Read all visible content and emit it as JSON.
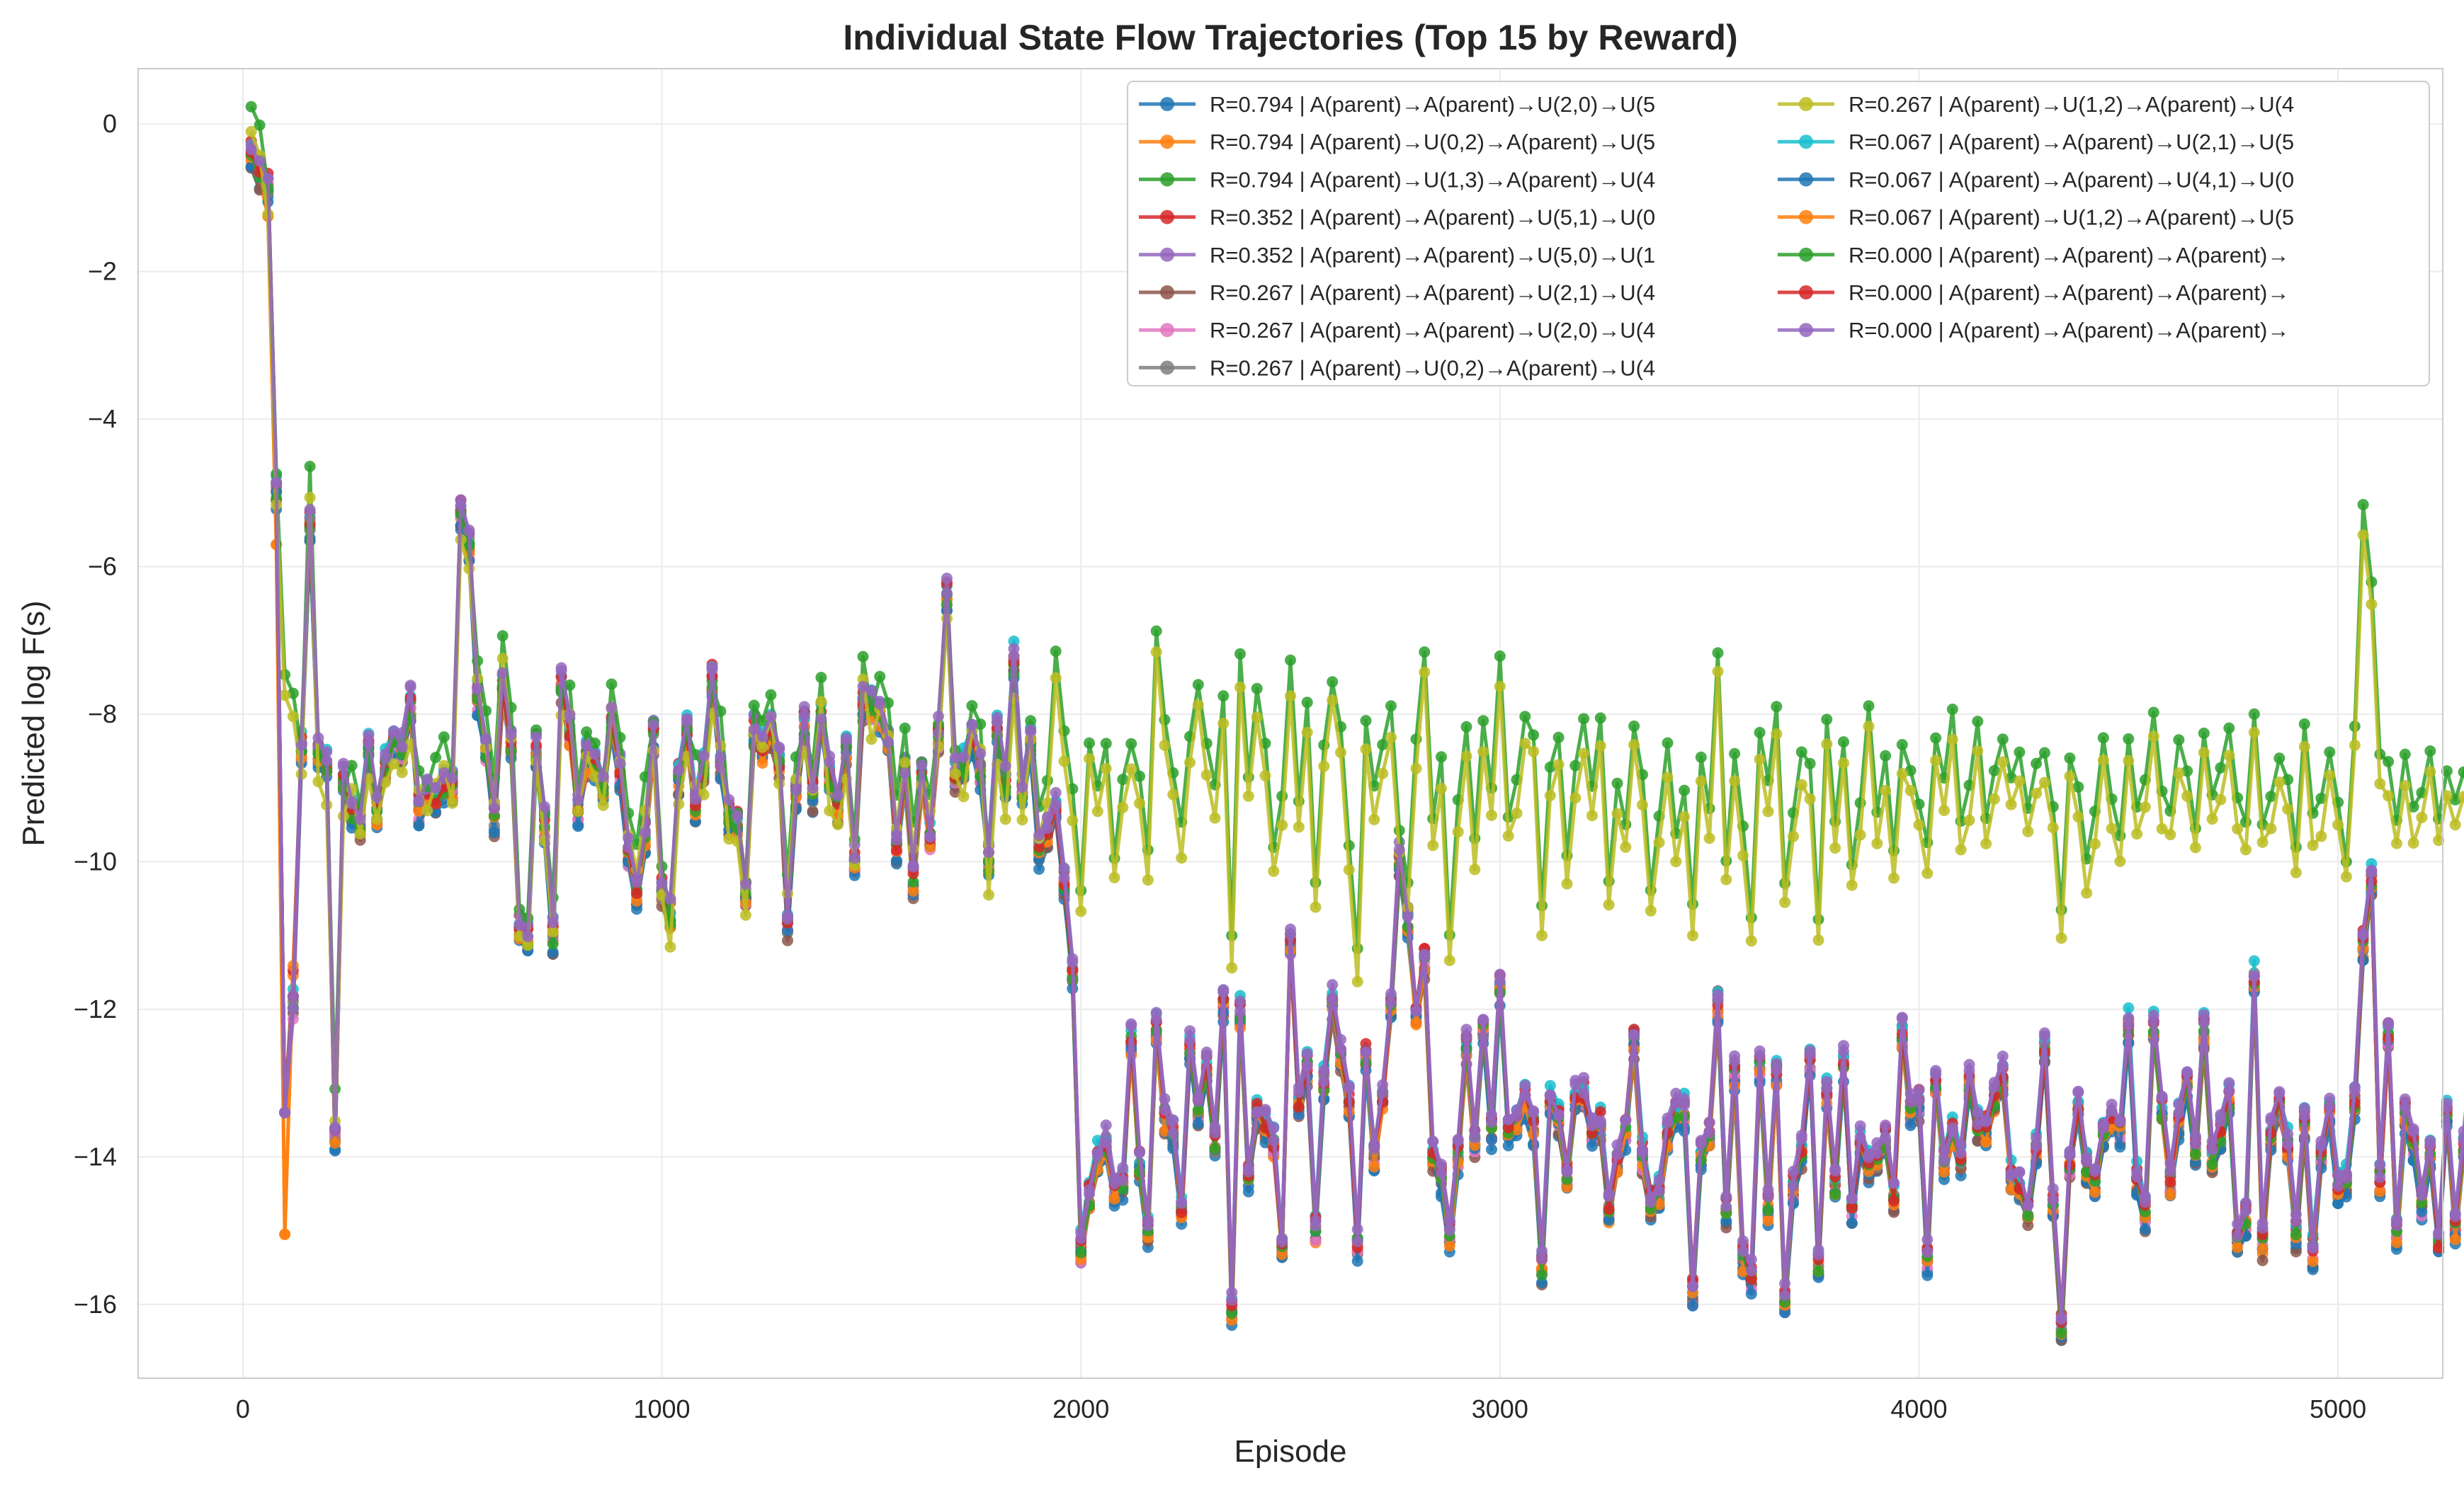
{
  "chart_data": {
    "type": "line",
    "title": "Individual State Flow Trajectories (Top 15 by Reward)",
    "xlabel": "Episode",
    "ylabel": "Predicted log F(s)",
    "xlim": [
      -250,
      5250
    ],
    "ylim": [
      -17,
      0.75
    ],
    "xticks": [
      0,
      1000,
      2000,
      3000,
      4000,
      5000
    ],
    "yticks": [
      0,
      -2,
      -4,
      -6,
      -8,
      -10,
      -12,
      -14,
      -16
    ],
    "grid": true,
    "legend_placement": "top-right",
    "legend_columns": 2,
    "series": [
      {
        "name": "R=0.794 | A(parent)→A(parent)→U(2,0)→U(5",
        "color": "#1f77b4",
        "group": "low"
      },
      {
        "name": "R=0.794 | A(parent)→U(0,2)→A(parent)→U(5",
        "color": "#ff7f0e",
        "group": "low"
      },
      {
        "name": "R=0.794 | A(parent)→U(1,3)→A(parent)→U(4",
        "color": "#2ca02c",
        "group": "high"
      },
      {
        "name": "R=0.352 | A(parent)→A(parent)→U(5,1)→U(0",
        "color": "#d62728",
        "group": "low"
      },
      {
        "name": "R=0.352 | A(parent)→A(parent)→U(5,0)→U(1",
        "color": "#9467bd",
        "group": "low"
      },
      {
        "name": "R=0.267 | A(parent)→A(parent)→U(2,1)→U(4",
        "color": "#8c564b",
        "group": "low"
      },
      {
        "name": "R=0.267 | A(parent)→A(parent)→U(2,0)→U(4",
        "color": "#e377c2",
        "group": "low"
      },
      {
        "name": "R=0.267 | A(parent)→U(0,2)→A(parent)→U(4",
        "color": "#7f7f7f",
        "group": "low"
      },
      {
        "name": "R=0.267 | A(parent)→U(1,2)→A(parent)→U(4",
        "color": "#bcbd22",
        "group": "high"
      },
      {
        "name": "R=0.067 | A(parent)→A(parent)→U(2,1)→U(5",
        "color": "#17becf",
        "group": "low"
      },
      {
        "name": "R=0.067 | A(parent)→A(parent)→U(4,1)→U(0",
        "color": "#1f77b4",
        "group": "low"
      },
      {
        "name": "R=0.067 | A(parent)→U(1,2)→A(parent)→U(5",
        "color": "#ff7f0e",
        "group": "low"
      },
      {
        "name": "R=0.000 | A(parent)→A(parent)→A(parent)→",
        "color": "#2ca02c",
        "group": "low"
      },
      {
        "name": "R=0.000 | A(parent)→A(parent)→A(parent)→",
        "color": "#d62728",
        "group": "low"
      },
      {
        "name": "R=0.000 | A(parent)→A(parent)→A(parent)→",
        "color": "#9467bd",
        "group": "low"
      }
    ],
    "trajectories": {
      "x_start": 20,
      "x_step": 20,
      "high_group_y": [
        -0.05,
        -0.3,
        -1.2,
        -5.0,
        -7.7,
        -8.0,
        -8.7,
        -5.0,
        -8.8,
        -9.1,
        -13.4,
        -9.3,
        -9.0,
        -9.5,
        -8.8,
        -9.4,
        -8.9,
        -8.6,
        -8.7,
        -8.3,
        -9.0,
        -9.2,
        -8.9,
        -8.6,
        -9.1,
        -5.5,
        -6.0,
        -7.5,
        -8.3,
        -9.2,
        -7.2,
        -8.2,
        -10.9,
        -11.0,
        -8.5,
        -9.7,
        -10.8,
        -8.0,
        -7.9,
        -9.3,
        -8.5,
        -8.7,
        -9.2,
        -7.8,
        -8.6,
        -9.6,
        -10.0,
        -9.2,
        -8.4,
        -10.3,
        -11.0,
        -9.1,
        -8.5,
        -8.8,
        -9.0,
        -7.9,
        -8.3,
        -9.6,
        -9.6,
        -10.6,
        -8.2,
        -8.3,
        -8.0,
        -8.9,
        -10.4,
        -8.8,
        -8.5,
        -9.0,
        -7.8,
        -9.2,
        -9.4,
        -8.8,
        -10.0,
        -7.5,
        -8.2,
        -7.8,
        -8.2,
        -9.4,
        -8.5,
        -9.8,
        -8.9,
        -9.3,
        -8.4,
        -6.6,
        -8.8,
        -9.1,
        -8.2,
        -8.4,
        -10.4,
        -8.6,
        -9.3,
        -7.7,
        -9.4,
        -8.3,
        -9.6,
        -9.2,
        -7.4,
        -8.5,
        -9.3,
        -10.6,
        -8.6,
        -9.2,
        -8.7,
        -10.2,
        -9.2,
        -8.7,
        -9.1,
        -10.2,
        -7.1,
        -8.4,
        -9.0,
        -9.8,
        -8.6,
        -7.8,
        -8.7,
        -9.3,
        -8.0,
        -11.3,
        -7.5,
        -9.1,
        -8.0,
        -8.7,
        -10.1,
        -9.4,
        -7.6,
        -9.4,
        -8.2,
        -10.6,
        -8.7,
        -7.8,
        -8.4,
        -10.0,
        -11.5,
        -8.4,
        -9.3,
        -8.7,
        -8.2,
        -9.8,
        -10.6,
        -8.6,
        -7.4,
        -9.7,
        -8.9,
        -11.3,
        -9.5,
        -8.5,
        -10.0,
        -8.4,
        -9.3,
        -7.5,
        -9.6,
        -9.2,
        -8.3,
        -8.5,
        -10.9,
        -9.0,
        -8.6,
        -10.2,
        -9.0,
        -8.4,
        -9.3,
        -8.3,
        -10.5,
        -9.2,
        -9.8,
        -8.4,
        -9.1,
        -10.6,
        -9.6,
        -8.7,
        -9.9,
        -9.3,
        -10.9,
        -8.8,
        -9.6,
        -7.4,
        -10.2,
        -8.8,
        -9.8,
        -11.0,
        -8.5,
        -9.2,
        -8.2,
        -10.5,
        -9.6,
        -8.8,
        -9.0,
        -11.0,
        -8.3,
        -9.7,
        -8.6,
        -10.3,
        -9.5,
        -8.1,
        -9.6,
        -8.9,
        -10.1,
        -8.7,
        -9.0,
        -9.5,
        -10.0,
        -8.6,
        -9.2,
        -8.2,
        -9.7,
        -9.3,
        -8.4,
        -9.7,
        -9.1,
        -8.6,
        -9.2,
        -8.8,
        -9.5,
        -9.0,
        -8.8,
        -9.5,
        -10.9,
        -8.8,
        -9.3,
        -10.3,
        -9.6,
        -8.6,
        -9.4,
        -9.9,
        -8.6,
        -9.6,
        -9.1,
        -8.3,
        -9.4,
        -9.6,
        -8.7,
        -9.0,
        -9.8,
        -8.5,
        -9.3,
        -9.0,
        -8.5,
        -9.4,
        -9.8,
        -8.2,
        -9.7,
        -9.4,
        -8.9,
        -9.2,
        -10.1,
        -8.4,
        -9.7,
        -9.5,
        -8.8,
        -9.4,
        -10.2,
        -8.4,
        -5.5,
        -6.5,
        -8.9,
        -9.0,
        -9.7,
        -8.9,
        -9.6,
        -9.3,
        -8.7,
        -9.7,
        -9.1,
        -9.4,
        -9.0,
        -8.8,
        -9.6,
        -9.2,
        -8.9,
        -9.6,
        -9.0,
        -9.7,
        -8.6,
        -9.1,
        -9.4,
        -8.8,
        -9.7,
        -9.2,
        -8.9,
        -9.3,
        -9.5,
        -9.0,
        -9.2,
        -10.0,
        -8.6,
        -9.4,
        -9.1,
        -9.3,
        -8.0,
        -9.5,
        -9.0,
        -9.6,
        -8.8,
        -9.4,
        -9.0,
        -9.7,
        -8.2,
        -9.3,
        -9.6,
        -8.7,
        -9.2,
        -9.5,
        -9.0,
        -8.4,
        -9.7,
        -9.1,
        -9.3,
        -8.9,
        -9.5,
        -10.3,
        -9.0,
        -8.8,
        -9.4,
        -9.6,
        -9.1,
        -8.4,
        -9.2,
        -9.7,
        -8.9,
        -9.3,
        -8.1,
        -9.4,
        -9.6,
        -9.0,
        -8.6,
        -9.3,
        -9.8,
        -8.9,
        -9.2,
        -9.5,
        -8.3,
        -9.1,
        -9.6,
        -8.6,
        -9.4,
        -9.2,
        -8.8,
        -9.5,
        -8.9,
        -9.3,
        -10.3,
        -8.7,
        -9.4,
        -9.1,
        -8.5,
        -9.6,
        -9.2,
        -8.4,
        -9.0,
        -9.4,
        -8.8,
        -9.7,
        -9.1,
        -8.3,
        -9.5,
        -8.9,
        -9.3,
        -7.9,
        -9.1,
        -9.4,
        -8.7,
        -9.8,
        -9.0,
        -9.4,
        -8.9,
        -9.6,
        -9.1,
        -9.3,
        -8.6,
        -9.5,
        -9.0,
        -8.8,
        -9.2,
        -10.8,
        -8.6,
        -9.3,
        -9.0,
        -8.5,
        -9.6,
        -9.2,
        -8.9,
        -9.4,
        -9.7,
        -8.4,
        -9.3,
        -8.7,
        -9.5,
        -9.0,
        -8.8,
        -9.6,
        -9.1,
        -8.6,
        -9.4,
        -9.2,
        -8.7,
        -9.0,
        -9.5,
        -8.4,
        -9.3,
        -9.1,
        -8.8,
        -7.3,
        -9.6,
        -9.0,
        -8.6,
        -9.4,
        -9.2,
        -8.9,
        -9.5,
        -10.1,
        -9.0,
        -8.8,
        -9.3,
        -9.6,
        -8.5,
        -9.2,
        -9.4,
        -8.8,
        -9.0,
        -9.7,
        -8.6,
        -9.3,
        -9.1,
        -8.7,
        -9.5,
        -9.8,
        -9.0,
        -10.1,
        -8.4,
        -11.0,
        -11.2,
        -10.3,
        -9.7,
        -9.3,
        -8.6,
        -9.4,
        -9.8,
        -9.2,
        -8.5,
        -9.6,
        -9.0,
        -8.9,
        -9.3,
        -9.5,
        -8.7,
        -9.1,
        -9.4,
        -8.5,
        -9.2,
        -8.8,
        -9.6,
        -8.6,
        -9.0,
        -9.3,
        -8.4,
        -9.1,
        -8.8,
        -9.2,
        -8.5,
        -8.9,
        -9.4,
        -8.7,
        -9.0,
        -8.6,
        -6.6,
        -9.4,
        -8.8,
        -8.5,
        -9.1,
        -8.9,
        -9.2,
        -10.1,
        -8.8,
        -9.3,
        -8.6,
        -9.0,
        -9.2,
        -8.8,
        -9.1
      ]
    }
  }
}
